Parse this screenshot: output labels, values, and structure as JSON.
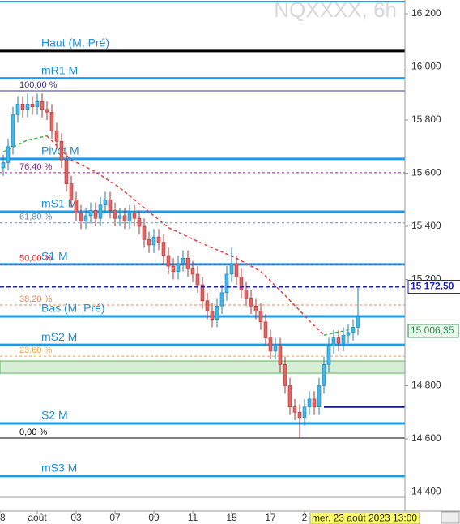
{
  "chart_data": {
    "type": "candlestick",
    "title": "NQXXXX, 6h",
    "tooltip": "mer. 23 août 2023 13:00",
    "xlim": [
      -0.667,
      82.667
    ],
    "ylim": [
      14316,
      16252
    ],
    "xticks": [
      {
        "value": -0.667,
        "label": "8"
      },
      {
        "value": 7,
        "label": "août"
      },
      {
        "value": 15,
        "label": "03"
      },
      {
        "value": 23,
        "label": "07"
      },
      {
        "value": 31,
        "label": "09"
      },
      {
        "value": 39,
        "label": "11"
      },
      {
        "value": 47,
        "label": "15"
      },
      {
        "value": 55,
        "label": "17"
      },
      {
        "value": 62,
        "label": "2"
      }
    ],
    "yticks": [
      {
        "value": 16200,
        "label": "16 200"
      },
      {
        "value": 16000,
        "label": "16 000"
      },
      {
        "value": 15800,
        "label": "15 800"
      },
      {
        "value": 15600,
        "label": "15 600"
      },
      {
        "value": 15400,
        "label": "15 400"
      },
      {
        "value": 15200,
        "label": "15 200"
      },
      {
        "value": 14800,
        "label": "14 800"
      },
      {
        "value": 14600,
        "label": "14 600"
      },
      {
        "value": 14400,
        "label": "14 400"
      }
    ],
    "up_color": "#3fb8ea",
    "down_color": "#e06666",
    "open": [
      15620,
      15640,
      15700,
      15820,
      15860,
      15840,
      15860,
      15850,
      15870,
      15840,
      15830,
      15760,
      15720,
      15650,
      15560,
      15500,
      15450,
      15420,
      15440,
      15460,
      15430,
      15480,
      15500,
      15460,
      15430,
      15440,
      15420,
      15450,
      15430,
      15400,
      15350,
      15330,
      15360,
      15340,
      15290,
      15250,
      15230,
      15260,
      15280,
      15240,
      15220,
      15180,
      15120,
      15080,
      15050,
      15100,
      15150,
      15220,
      15260,
      15210,
      15160,
      15130,
      15100,
      15080,
      15040,
      14980,
      14930,
      14950,
      14880,
      14800,
      14720,
      14700,
      14680,
      14720,
      14750,
      14720,
      14800,
      14880,
      14950,
      14980,
      14960,
      14990,
      15000,
      15020
    ],
    "high": [
      15670,
      15730,
      15850,
      15890,
      15890,
      15900,
      15890,
      15900,
      15900,
      15870,
      15860,
      15790,
      15750,
      15680,
      15590,
      15530,
      15480,
      15470,
      15490,
      15490,
      15510,
      15530,
      15530,
      15490,
      15470,
      15470,
      15480,
      15480,
      15460,
      15430,
      15380,
      15390,
      15390,
      15370,
      15320,
      15280,
      15290,
      15310,
      15310,
      15270,
      15250,
      15210,
      15150,
      15110,
      15130,
      15180,
      15250,
      15320,
      15290,
      15240,
      15190,
      15160,
      15130,
      15110,
      15070,
      15010,
      14980,
      14980,
      14910,
      14830,
      14750,
      14730,
      14750,
      14780,
      14780,
      14830,
      14910,
      14980,
      15010,
      15010,
      15020,
      15030,
      15050,
      15172
    ],
    "low": [
      15590,
      15610,
      15670,
      15790,
      15810,
      15810,
      15820,
      15820,
      15810,
      15800,
      15730,
      15690,
      15620,
      15530,
      15470,
      15420,
      15390,
      15390,
      15410,
      15400,
      15400,
      15450,
      15430,
      15400,
      15400,
      15390,
      15390,
      15400,
      15370,
      15320,
      15300,
      15300,
      15310,
      15260,
      15220,
      15200,
      15200,
      15230,
      15210,
      15190,
      15150,
      15090,
      15050,
      15020,
      15020,
      15070,
      15120,
      15190,
      15180,
      15130,
      15100,
      15070,
      15050,
      15010,
      14950,
      14900,
      14900,
      14850,
      14770,
      14690,
      14670,
      14605,
      14650,
      14690,
      14690,
      14690,
      14770,
      14850,
      14920,
      14930,
      14930,
      14960,
      14970,
      14990
    ],
    "close": [
      15640,
      15700,
      15820,
      15860,
      15840,
      15860,
      15850,
      15870,
      15840,
      15830,
      15760,
      15720,
      15650,
      15560,
      15500,
      15450,
      15420,
      15440,
      15460,
      15430,
      15480,
      15500,
      15460,
      15430,
      15440,
      15420,
      15450,
      15430,
      15400,
      15350,
      15330,
      15360,
      15340,
      15290,
      15250,
      15230,
      15260,
      15280,
      15240,
      15220,
      15180,
      15120,
      15080,
      15050,
      15100,
      15150,
      15220,
      15260,
      15210,
      15160,
      15130,
      15100,
      15080,
      15040,
      14980,
      14930,
      14950,
      14880,
      14800,
      14720,
      14700,
      14680,
      14720,
      14750,
      14720,
      14800,
      14880,
      14950,
      14980,
      14960,
      14990,
      15000,
      15020,
      15060
    ],
    "averages": [
      {
        "color": "#3cb83c",
        "x": [
          0,
          5,
          9
        ],
        "values": [
          15680,
          15725,
          15740
        ]
      },
      {
        "color": "#e04040",
        "x": [
          9,
          14,
          19,
          24,
          29,
          34,
          41,
          48,
          53,
          58,
          63,
          66
        ],
        "values": [
          15740,
          15650,
          15605,
          15545,
          15470,
          15395,
          15335,
          15280,
          15230,
          15140,
          15045,
          14990
        ]
      },
      {
        "color": "#3cb83c",
        "x": [
          66,
          71
        ],
        "values": [
          14990,
          15010
        ]
      }
    ],
    "levels": [
      {
        "label": null,
        "value": 16246,
        "color": "#1e9be6",
        "width": 2,
        "dash": false,
        "style": "pivot"
      },
      {
        "label": "Haut (M, Pré)",
        "value": 16060,
        "color": "#000000",
        "width": 3,
        "dash": false,
        "style": "pivot"
      },
      {
        "label": "mR1 M",
        "value": 15957,
        "color": "#1e9be6",
        "width": 3,
        "dash": false,
        "style": "pivot"
      },
      {
        "label": "100,00 %",
        "value": 15910,
        "color": "#3a2fa0",
        "width": 1,
        "dash": false,
        "style": "fib"
      },
      {
        "label": "Pivot M",
        "value": 15654,
        "color": "#1e9be6",
        "width": 3,
        "dash": false,
        "style": "pivot"
      },
      {
        "label": "76,40 %",
        "value": 15602,
        "color": "#8a2b8a",
        "width": 1,
        "dash": true,
        "style": "fib"
      },
      {
        "label": "mS1 M",
        "value": 15455,
        "color": "#1e9be6",
        "width": 3,
        "dash": false,
        "style": "pivot"
      },
      {
        "label": "61,80 %",
        "value": 15413,
        "color": "#6a8fb0",
        "width": 1,
        "dash": true,
        "style": "fib"
      },
      {
        "label": "S1 M",
        "value": 15257,
        "color": "#1e9be6",
        "width": 3,
        "dash": false,
        "style": "pivot"
      },
      {
        "label": "50,00 %",
        "value": 15257,
        "color": "#cc2222",
        "width": 1,
        "dash": true,
        "style": "fib"
      },
      {
        "label": "38,20 %",
        "value": 15104,
        "color": "#e08a5a",
        "width": 1,
        "dash": true,
        "style": "fib"
      },
      {
        "label": "Bas (M, Pré)",
        "value": 15061,
        "color": "#1e9be6",
        "width": 3,
        "dash": false,
        "style": "pivot"
      },
      {
        "label": "mS2 M",
        "value": 14954,
        "color": "#1e9be6",
        "width": 3,
        "dash": false,
        "style": "pivot"
      },
      {
        "label": "23,60 %",
        "value": 14911,
        "color": "#e8a84a",
        "width": 1,
        "dash": true,
        "style": "fib"
      },
      {
        "label": "S2 M",
        "value": 14658,
        "color": "#1e9be6",
        "width": 3,
        "dash": false,
        "style": "pivot"
      },
      {
        "label": "0,00 %",
        "value": 14603,
        "color": "#000000",
        "width": 1,
        "dash": false,
        "style": "fib"
      },
      {
        "label": "mS3 M",
        "value": 14460,
        "color": "#1e9be6",
        "width": 3,
        "dash": false,
        "style": "pivot"
      },
      {
        "label": null,
        "value": 14380,
        "color": "#999999",
        "width": 1,
        "dash": false,
        "style": "fib"
      }
    ],
    "zone": {
      "values": [
        14847,
        14893
      ],
      "color": "#5cb85c"
    },
    "segment": {
      "value": 14720,
      "x": 66,
      "color": "#0a1aa0"
    },
    "price": {
      "value": 15172.5,
      "label": "15 172,50",
      "color": "#2020c0"
    },
    "average_price": {
      "value": 15006.35,
      "label": "15 006,35",
      "color": "#2e8b57"
    }
  }
}
